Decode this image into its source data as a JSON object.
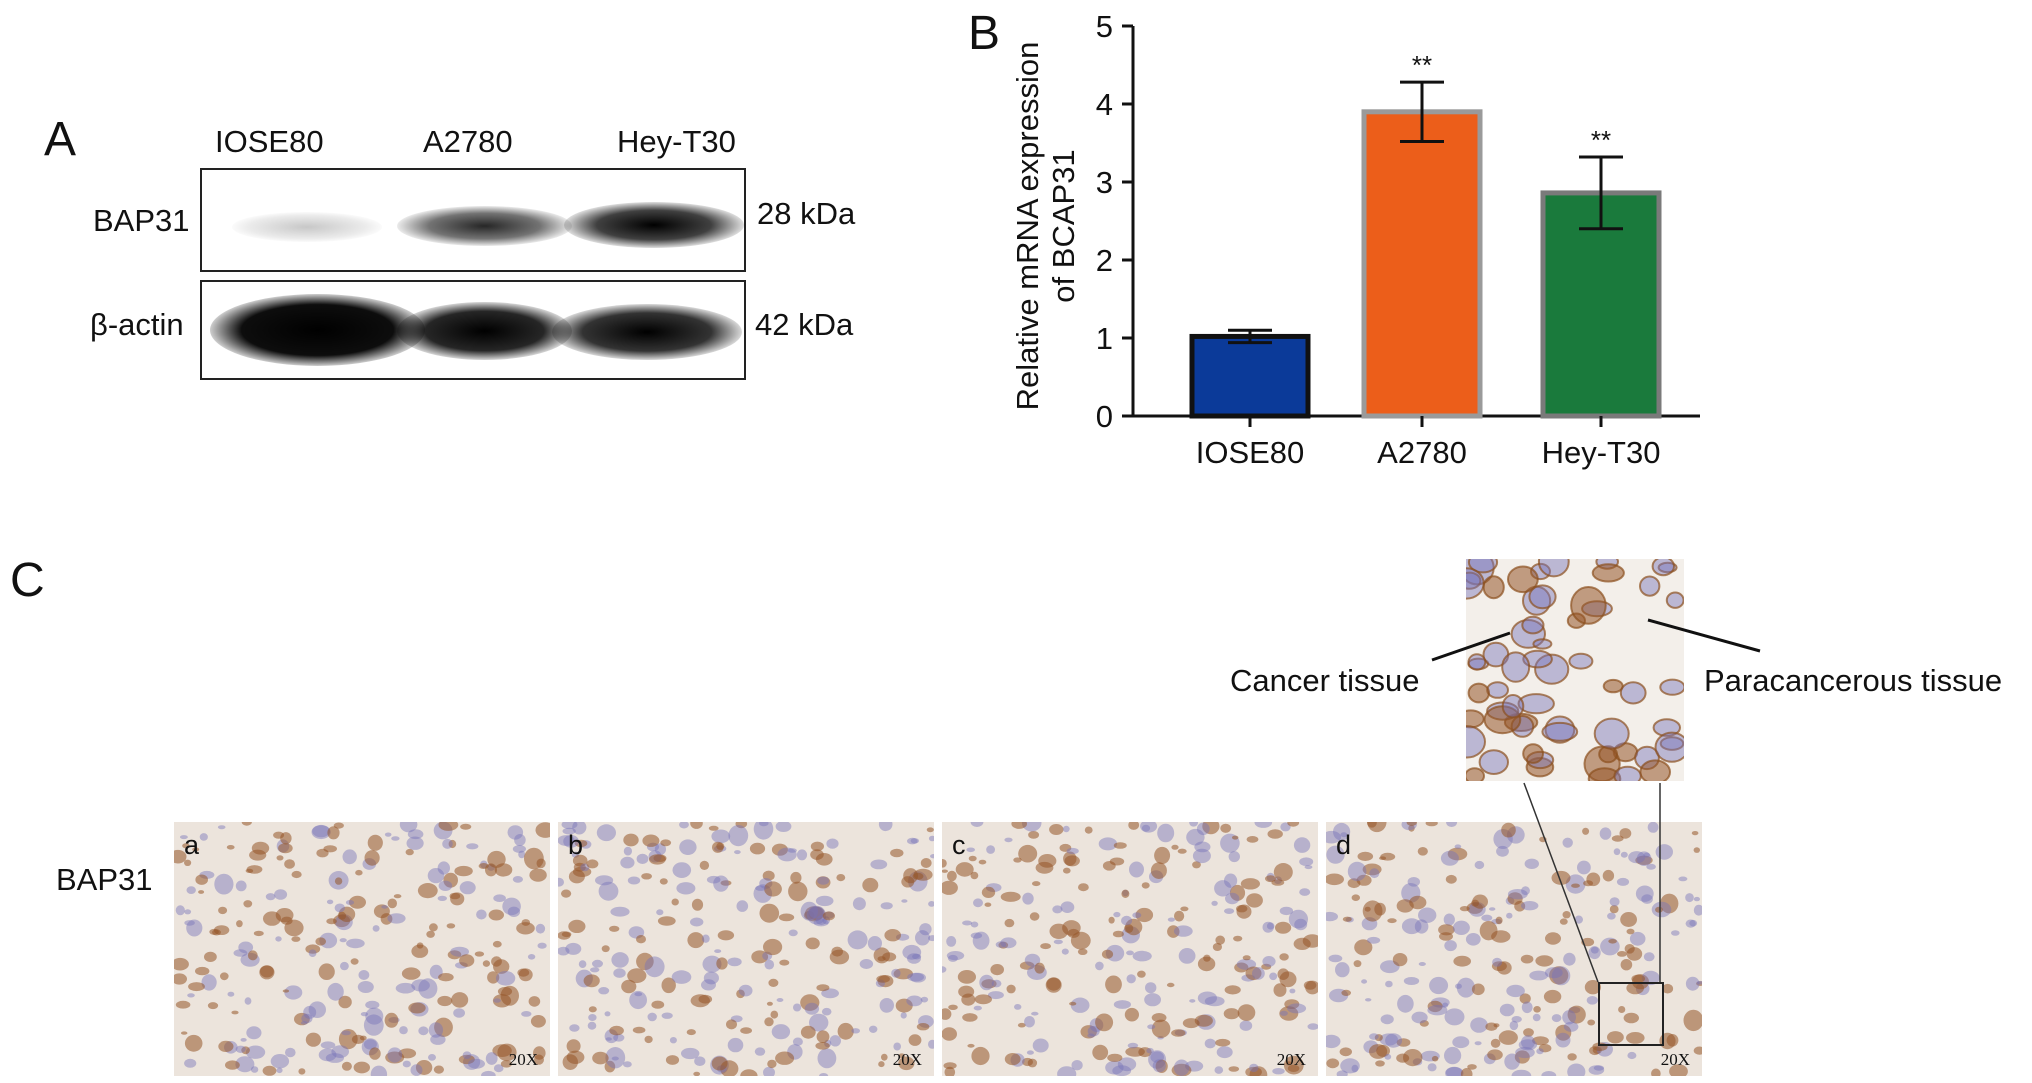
{
  "panel_letters": {
    "a": "A",
    "b": "B",
    "c": "C"
  },
  "panel_a": {
    "lanes": [
      "IOSE80",
      "A2780",
      "Hey-T30"
    ],
    "rows": [
      {
        "protein": "BAP31",
        "size": "28 kDa"
      },
      {
        "protein": "β-actin",
        "size": "42 kDa"
      }
    ]
  },
  "chart_data": {
    "type": "bar",
    "categories": [
      "IOSE80",
      "A2780",
      "Hey-T30"
    ],
    "values": [
      1.02,
      3.9,
      2.86
    ],
    "errors": [
      0.08,
      0.38,
      0.46
    ],
    "significance": [
      "",
      "**",
      "**"
    ],
    "colors": [
      "#0b3a99",
      "#ec5e1a",
      "#1a7a3c"
    ],
    "xlabel": "",
    "ylabel": "Relative mRNA expression of BCAP31",
    "ylabel_lines": [
      "Relative mRNA expression",
      "of BCAP31"
    ],
    "ylim": [
      0,
      5
    ],
    "yticks": [
      0,
      1,
      2,
      3,
      4,
      5
    ],
    "grid": false
  },
  "panel_c": {
    "row_label": "BAP31",
    "images": [
      {
        "label": "a",
        "mag": "20X"
      },
      {
        "label": "b",
        "mag": "20X"
      },
      {
        "label": "c",
        "mag": "20X"
      },
      {
        "label": "d",
        "mag": "20X"
      }
    ],
    "annotations": {
      "cancer": "Cancer tissue",
      "para": "Paracancerous tissue"
    }
  }
}
